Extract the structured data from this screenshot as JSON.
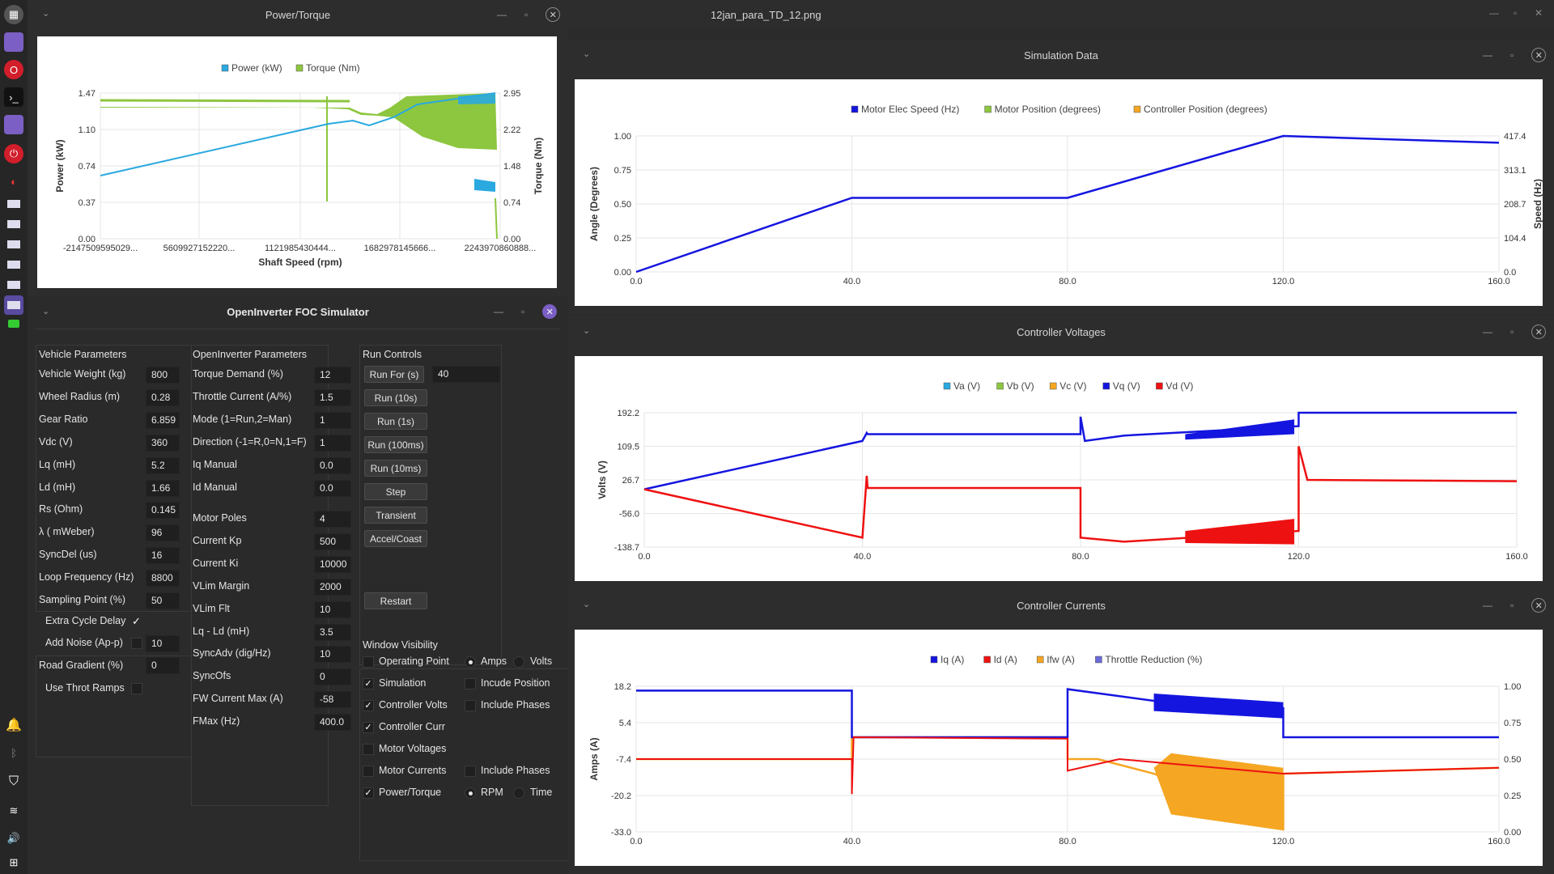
{
  "dock": {
    "icons": [
      "app-grid-icon",
      "purple-window-icon",
      "opera-icon",
      "terminal-icon",
      "files-icon",
      "power-icon",
      "opera-gx-icon",
      "window-icon",
      "window-icon",
      "window-icon",
      "window-icon",
      "window-icon",
      "window-icon",
      "game-icon"
    ],
    "tray": [
      "bell-icon",
      "bluetooth-icon",
      "shield-icon",
      "wifi-icon",
      "volume-icon",
      "grid-icon"
    ]
  },
  "image_viewer": {
    "title": "12jan_para_TD_12.png"
  },
  "power_torque": {
    "title": "Power/Torque",
    "legend": [
      "Power (kW)",
      "Torque (Nm)"
    ],
    "colors": {
      "power": "#2aa9e0",
      "torque": "#8dc63f"
    },
    "xlabel": "Shaft Speed (rpm)",
    "ylabel_left": "Power (kW)",
    "ylabel_right": "Torque (Nm)",
    "left_ticks": [
      "1.47",
      "1.10",
      "0.74",
      "0.37",
      "0.00"
    ],
    "right_ticks": [
      "2.95",
      "2.22",
      "1.48",
      "0.74",
      "0.00"
    ],
    "x_ticks": [
      "-2147509595029...",
      "5609927152220...",
      "1121985430444...",
      "1682978145666...",
      "2243970860888..."
    ]
  },
  "sim_data": {
    "title": "Simulation Data",
    "legend": [
      "Motor Elec Speed (Hz)",
      "Motor Position (degrees)",
      "Controller Position (degrees)"
    ],
    "colors": [
      "#1515e0",
      "#8dc63f",
      "#f5a623"
    ],
    "ylabel_left": "Angle (Degrees)",
    "ylabel_right": "Speed (Hz)",
    "left_ticks": [
      "1.00",
      "0.75",
      "0.50",
      "0.25",
      "0.00"
    ],
    "right_ticks": [
      "417.4",
      "313.1",
      "208.7",
      "104.4",
      "0.0"
    ],
    "x_ticks": [
      "0.0",
      "40.0",
      "80.0",
      "120.0",
      "160.0"
    ]
  },
  "ctrl_volts": {
    "title": "Controller Voltages",
    "legend": [
      "Va (V)",
      "Vb (V)",
      "Vc (V)",
      "Vq (V)",
      "Vd (V)"
    ],
    "colors": [
      "#2aa9e0",
      "#8dc63f",
      "#f5a623",
      "#1515e0",
      "#ee1111"
    ],
    "ylabel": "Volts (V)",
    "left_ticks": [
      "192.2",
      "109.5",
      "26.7",
      "-56.0",
      "-138.7"
    ],
    "x_ticks": [
      "0.0",
      "40.0",
      "80.0",
      "120.0",
      "160.0"
    ]
  },
  "ctrl_curr": {
    "title": "Controller Currents",
    "legend": [
      "Iq (A)",
      "Id (A)",
      "Ifw (A)",
      "Throttle Reduction (%)"
    ],
    "colors": [
      "#1515e0",
      "#ee1111",
      "#f5a623",
      "#6a6ad8"
    ],
    "ylabel": "Amps (A)",
    "left_ticks": [
      "18.2",
      "5.4",
      "-7.4",
      "-20.2",
      "-33.0"
    ],
    "right_ticks": [
      "1.00",
      "0.75",
      "0.50",
      "0.25",
      "0.00"
    ],
    "x_ticks": [
      "0.0",
      "40.0",
      "80.0",
      "120.0",
      "160.0"
    ]
  },
  "sim": {
    "title": "OpenInverter FOC Simulator",
    "vehicle": {
      "heading": "Vehicle Parameters",
      "rows": [
        [
          "Vehicle Weight (kg)",
          "800"
        ],
        [
          "Wheel Radius (m)",
          "0.28"
        ],
        [
          "Gear Ratio",
          "6.859"
        ],
        [
          "Vdc (V)",
          "360"
        ],
        [
          "Lq (mH)",
          "5.2"
        ],
        [
          "Ld (mH)",
          "1.66"
        ],
        [
          "Rs (Ohm)",
          "0.145"
        ],
        [
          "λ ( mWeber)",
          "96"
        ],
        [
          "SyncDel (us)",
          "16"
        ],
        [
          "Loop Frequency (Hz)",
          "8800"
        ],
        [
          "Sampling Point (%)",
          "50"
        ]
      ],
      "extra_cycle_delay": "Extra Cycle Delay",
      "extra_check": "✓",
      "add_noise": "Add Noise (Ap-p)",
      "add_noise_val": "10",
      "road_gradient": "Road Gradient (%)",
      "road_gradient_val": "0",
      "use_throt": "Use Throt Ramps"
    },
    "inverter": {
      "heading": "OpenInverter Parameters",
      "rows": [
        [
          "Torque Demand (%)",
          "12"
        ],
        [
          "Throttle Current (A/%)",
          "1.5"
        ],
        [
          "Mode (1=Run,2=Man)",
          "1"
        ],
        [
          "Direction (-1=R,0=N,1=F)",
          "1"
        ],
        [
          "Iq Manual",
          "0.0"
        ],
        [
          "Id Manual",
          "0.0"
        ]
      ],
      "rows2": [
        [
          "Motor Poles",
          "4"
        ],
        [
          "Current Kp",
          "500"
        ],
        [
          "Current Ki",
          "10000"
        ],
        [
          "VLim Margin",
          "2000"
        ],
        [
          "VLim Flt",
          "10"
        ],
        [
          "Lq - Ld (mH)",
          "3.5"
        ],
        [
          "SyncAdv (dig/Hz)",
          "10"
        ],
        [
          "SyncOfs",
          "0"
        ],
        [
          "FW Current Max (A)",
          "-58"
        ],
        [
          "FMax (Hz)",
          "400.0"
        ]
      ]
    },
    "run": {
      "heading": "Run Controls",
      "run_for": "Run For (s)",
      "run_for_val": "40",
      "buttons": [
        "Run (10s)",
        "Run (1s)",
        "Run (100ms)",
        "Run (10ms)",
        "Step",
        "Transient",
        "Accel/Coast"
      ],
      "restart": "Restart"
    },
    "visibility": {
      "heading": "Window Visibility",
      "left": [
        [
          "Operating Point",
          ""
        ],
        [
          "Simulation",
          "✓"
        ],
        [
          "Controller Volts",
          "✓"
        ],
        [
          "Controller Curr",
          "✓"
        ],
        [
          "Motor Voltages",
          ""
        ],
        [
          "Motor Currents",
          ""
        ],
        [
          "Power/Torque",
          "✓"
        ]
      ],
      "amps": "Amps",
      "volts": "Volts",
      "include_position": "Incude Position",
      "include_phases1": "Include Phases",
      "include_phases2": "Include Phases",
      "rpm": "RPM",
      "time": "Time"
    }
  }
}
